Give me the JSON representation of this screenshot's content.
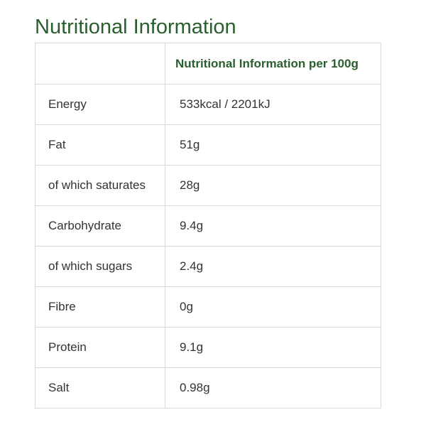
{
  "title": "Nutritional Information",
  "table": {
    "header": [
      "",
      "Nutritional Information per 100g"
    ],
    "rows": [
      {
        "label": "Energy",
        "value": "533kcal / 2201kJ"
      },
      {
        "label": "Fat",
        "value": "51g"
      },
      {
        "label": "of which saturates",
        "value": "28g"
      },
      {
        "label": "Carbohydrate",
        "value": "9.4g"
      },
      {
        "label": "of which sugars",
        "value": "2.4g"
      },
      {
        "label": "Fibre",
        "value": "0g"
      },
      {
        "label": "Protein",
        "value": "9.1g"
      },
      {
        "label": "Salt",
        "value": "0.98g"
      }
    ]
  },
  "colors": {
    "accent": "#2b5e2f",
    "border": "#d9d9d9",
    "text": "#333333"
  }
}
